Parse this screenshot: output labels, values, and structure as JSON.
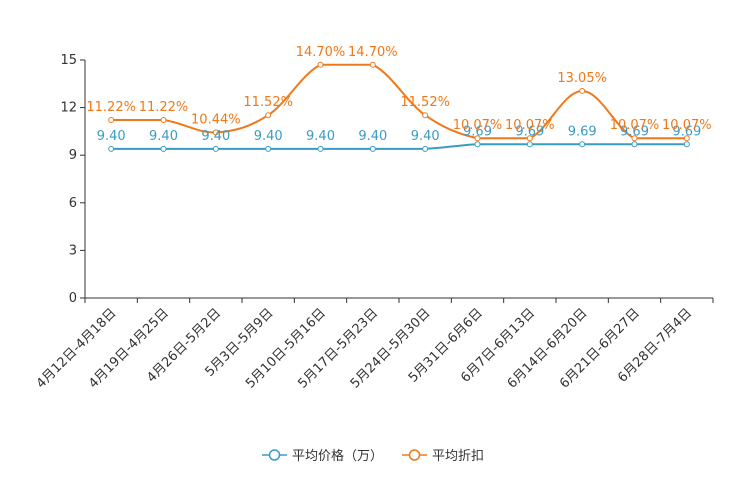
{
  "chart_data": {
    "type": "line",
    "title": "",
    "xlabel": "",
    "ylabel": "",
    "ylim": [
      0,
      15
    ],
    "yticks": [
      0,
      3,
      6,
      9,
      12,
      15
    ],
    "grid": false,
    "legend_position": "bottom-center",
    "categories": [
      "4月12日-4月18日",
      "4月19日-4月25日",
      "4月26日-5月2日",
      "5月3日-5月9日",
      "5月10日-5月16日",
      "5月17日-5月23日",
      "5月24日-5月30日",
      "5月31日-6月6日",
      "6月7日-6月13日",
      "6月14日-6月20日",
      "6月21日-6月27日",
      "6月28日-7月4日"
    ],
    "series": [
      {
        "name": "平均价格（万）",
        "color": "#3A9CC4",
        "values": [
          9.4,
          9.4,
          9.4,
          9.4,
          9.4,
          9.4,
          9.4,
          9.69,
          9.69,
          9.69,
          9.69,
          9.69
        ],
        "labels": [
          "9.40",
          "9.40",
          "9.40",
          "9.40",
          "9.40",
          "9.40",
          "9.40",
          "9.69",
          "9.69",
          "9.69",
          "9.69",
          "9.69"
        ]
      },
      {
        "name": "平均折扣",
        "color": "#F07818",
        "values": [
          11.22,
          11.22,
          10.44,
          11.52,
          14.7,
          14.7,
          11.52,
          10.07,
          10.07,
          13.05,
          10.07,
          10.07
        ],
        "labels": [
          "11.22%",
          "11.22%",
          "10.44%",
          "11.52%",
          "14.70%",
          "14.70%",
          "11.52%",
          "10.07%",
          "10.07%",
          "13.05%",
          "10.07%",
          "10.07%"
        ]
      }
    ]
  }
}
